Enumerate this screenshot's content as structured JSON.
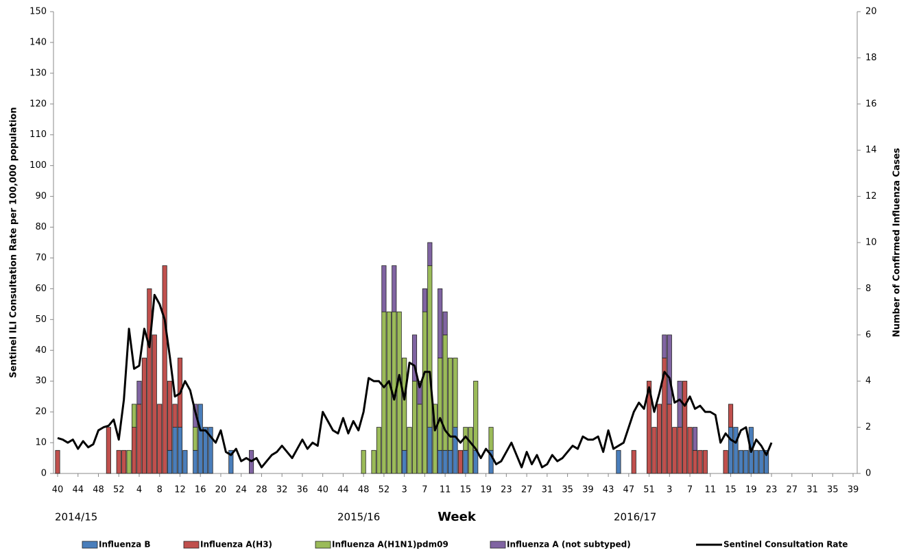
{
  "chart_data": {
    "type": "bar",
    "stacked": true,
    "y_label": "Sentinel ILI Consultation Rate per 100,000 population",
    "y2_label": "Number of Confirmed Influenza Cases",
    "x_label": "Week",
    "season_labels": [
      "2014/15",
      "2015/16",
      "2016/17"
    ],
    "ylim": [
      0,
      150
    ],
    "yticks": [
      0,
      10,
      20,
      30,
      40,
      50,
      60,
      70,
      80,
      90,
      100,
      110,
      120,
      130,
      140,
      150
    ],
    "y2lim": [
      0,
      20
    ],
    "y2ticks": [
      0,
      2,
      4,
      6,
      8,
      10,
      12,
      14,
      16,
      18,
      20
    ],
    "legend": "bottom",
    "categories": [
      "40",
      null,
      null,
      null,
      "44",
      null,
      null,
      null,
      "48",
      null,
      null,
      null,
      "52",
      null,
      null,
      null,
      "4",
      null,
      null,
      null,
      "8",
      null,
      null,
      null,
      "12",
      null,
      null,
      null,
      "16",
      null,
      null,
      null,
      "20",
      null,
      null,
      null,
      "24",
      null,
      null,
      null,
      "28",
      null,
      null,
      null,
      "32",
      null,
      null,
      null,
      "36",
      null,
      null,
      null,
      "40",
      null,
      null,
      null,
      "44",
      null,
      null,
      null,
      "48",
      null,
      null,
      null,
      "52",
      null,
      null,
      null,
      "3",
      null,
      null,
      null,
      "7",
      null,
      null,
      null,
      "11",
      null,
      null,
      null,
      "15",
      null,
      null,
      null,
      "19",
      null,
      null,
      null,
      "23",
      null,
      null,
      null,
      "27",
      null,
      null,
      null,
      "31",
      null,
      null,
      null,
      "35",
      null,
      null,
      null,
      "39",
      null,
      null,
      null,
      "43",
      null,
      null,
      null,
      "47",
      null,
      null,
      null,
      "51",
      null,
      null,
      null,
      "3",
      null,
      null,
      null,
      "7",
      null,
      null,
      null,
      "11",
      null,
      null,
      null,
      "15",
      null,
      null,
      null,
      "19",
      null,
      null,
      null,
      "23",
      null,
      null,
      null,
      "27",
      null,
      null,
      null,
      "31",
      null,
      null,
      null,
      "35",
      null,
      null,
      null,
      "39"
    ],
    "series": [
      {
        "name": "Influenza B",
        "type": "bar",
        "axis": "y2",
        "color": "#4a7ebb",
        "values": [
          0,
          0,
          0,
          0,
          0,
          0,
          0,
          0,
          0,
          0,
          0,
          0,
          0,
          0,
          0,
          0,
          0,
          0,
          0,
          0,
          0,
          0,
          1,
          2,
          2,
          1,
          0,
          1,
          3,
          2,
          2,
          0,
          0,
          0,
          1,
          0,
          0,
          0,
          0,
          0,
          0,
          0,
          0,
          0,
          0,
          0,
          0,
          0,
          0,
          0,
          0,
          0,
          0,
          0,
          0,
          0,
          0,
          0,
          0,
          0,
          0,
          0,
          0,
          0,
          0,
          0,
          0,
          0,
          1,
          0,
          0,
          0,
          0,
          2,
          0,
          1,
          1,
          1,
          2,
          0,
          1,
          0,
          1,
          0,
          0,
          1,
          0,
          0,
          0,
          0,
          0,
          0,
          0,
          0,
          0,
          0,
          0,
          0,
          0,
          0,
          0,
          0,
          0,
          0,
          0,
          0,
          0,
          0,
          0,
          0,
          1,
          0,
          0,
          0,
          0,
          0,
          0,
          0,
          0,
          0,
          0,
          0,
          0,
          0,
          0,
          0,
          0,
          0,
          0,
          0,
          0,
          0,
          2,
          2,
          1,
          1,
          2,
          1,
          1,
          1,
          0,
          0,
          0,
          0,
          0,
          0,
          0,
          0,
          0,
          0,
          0,
          0,
          0,
          0,
          0,
          0,
          0
        ]
      },
      {
        "name": "Influenza A(H3)",
        "type": "bar",
        "axis": "y2",
        "color": "#c0504d",
        "values": [
          1,
          0,
          0,
          0,
          0,
          0,
          0,
          0,
          0,
          0,
          2,
          0,
          1,
          1,
          0,
          2,
          3,
          5,
          8,
          6,
          3,
          9,
          3,
          1,
          3,
          0,
          0,
          0,
          0,
          0,
          0,
          0,
          0,
          0,
          0,
          0,
          0,
          0,
          0,
          0,
          0,
          0,
          0,
          0,
          0,
          0,
          0,
          0,
          0,
          0,
          0,
          0,
          0,
          0,
          0,
          0,
          0,
          0,
          0,
          0,
          0,
          0,
          0,
          0,
          0,
          0,
          0,
          0,
          0,
          0,
          0,
          0,
          0,
          0,
          0,
          0,
          0,
          0,
          0,
          1,
          0,
          0,
          0,
          0,
          0,
          0,
          0,
          0,
          0,
          0,
          0,
          0,
          0,
          0,
          0,
          0,
          0,
          0,
          0,
          0,
          0,
          0,
          0,
          0,
          0,
          0,
          0,
          0,
          0,
          0,
          0,
          0,
          0,
          1,
          0,
          0,
          4,
          2,
          3,
          5,
          3,
          2,
          2,
          4,
          2,
          1,
          1,
          1,
          0,
          0,
          0,
          1,
          1,
          0,
          0,
          0,
          0,
          0,
          0,
          0,
          0,
          0,
          0,
          0,
          0,
          0,
          0,
          0,
          0,
          0,
          0,
          0,
          0,
          0,
          0,
          0,
          0
        ]
      },
      {
        "name": "Influenza A(H1N1)pdm09",
        "type": "bar",
        "axis": "y2",
        "color": "#9bbb59",
        "values": [
          0,
          0,
          0,
          0,
          0,
          0,
          0,
          0,
          0,
          0,
          0,
          0,
          0,
          0,
          1,
          1,
          0,
          0,
          0,
          0,
          0,
          0,
          0,
          0,
          0,
          0,
          0,
          1,
          0,
          0,
          0,
          0,
          0,
          0,
          0,
          0,
          0,
          0,
          0,
          0,
          0,
          0,
          0,
          0,
          0,
          0,
          0,
          0,
          0,
          0,
          0,
          0,
          0,
          0,
          0,
          0,
          0,
          0,
          0,
          0,
          1,
          0,
          1,
          2,
          7,
          7,
          7,
          7,
          4,
          2,
          4,
          3,
          7,
          7,
          3,
          4,
          5,
          4,
          3,
          0,
          1,
          2,
          3,
          0,
          0,
          1,
          0,
          0,
          0,
          0,
          0,
          0,
          0,
          0,
          0,
          0,
          0,
          0,
          0,
          0,
          0,
          0,
          0,
          0,
          0,
          0,
          0,
          0,
          0,
          0,
          0,
          0,
          0,
          0,
          0,
          0,
          0,
          0,
          0,
          0,
          0,
          0,
          0,
          0,
          0,
          0,
          0,
          0,
          0,
          0,
          0,
          0,
          0,
          0,
          0,
          0,
          0,
          0,
          0,
          0,
          0,
          0,
          0,
          0,
          0,
          0,
          0,
          0,
          0,
          0,
          0,
          0,
          0,
          0,
          0,
          0,
          0
        ]
      },
      {
        "name": "Influenza A (not subtyped)",
        "type": "bar",
        "axis": "y2",
        "color": "#8064a2",
        "values": [
          0,
          0,
          0,
          0,
          0,
          0,
          0,
          0,
          0,
          0,
          0,
          0,
          0,
          0,
          0,
          0,
          1,
          0,
          0,
          0,
          0,
          0,
          0,
          0,
          0,
          0,
          0,
          1,
          0,
          0,
          0,
          0,
          0,
          0,
          0,
          0,
          0,
          0,
          1,
          0,
          0,
          0,
          0,
          0,
          0,
          0,
          0,
          0,
          0,
          0,
          0,
          0,
          0,
          0,
          0,
          0,
          0,
          0,
          0,
          0,
          0,
          0,
          0,
          0,
          2,
          0,
          2,
          0,
          0,
          0,
          2,
          1,
          1,
          1,
          0,
          3,
          1,
          0,
          0,
          0,
          0,
          0,
          0,
          0,
          0,
          0,
          0,
          0,
          0,
          0,
          0,
          0,
          0,
          0,
          0,
          0,
          0,
          0,
          0,
          0,
          0,
          0,
          0,
          0,
          0,
          0,
          0,
          0,
          0,
          0,
          0,
          0,
          0,
          0,
          0,
          0,
          0,
          0,
          0,
          1,
          3,
          0,
          2,
          0,
          0,
          1,
          0,
          0,
          0,
          0,
          0,
          0,
          0,
          0,
          0,
          0,
          0,
          0,
          0,
          0,
          0,
          0,
          0,
          0,
          0,
          0,
          0,
          0,
          0,
          0,
          0,
          0,
          0,
          0,
          0,
          0,
          0
        ]
      },
      {
        "name": "Sentinel Consultation Rate",
        "type": "line",
        "axis": "y",
        "color": "#000000",
        "values": [
          11.5,
          11,
          10,
          11,
          8,
          10.5,
          8.5,
          9.5,
          14,
          15,
          15.5,
          17.5,
          11,
          24,
          47,
          34,
          35,
          47,
          41,
          58,
          55,
          50,
          38,
          25,
          26,
          30,
          27,
          20,
          14,
          14,
          12,
          10,
          14,
          7,
          6,
          8,
          4,
          5,
          4,
          5,
          2,
          4,
          6,
          7,
          9,
          7,
          5,
          8,
          11,
          8,
          10,
          9,
          20,
          17,
          14,
          13,
          18,
          13,
          17,
          14,
          20,
          31,
          30,
          30,
          28,
          30,
          24,
          32,
          24,
          36,
          35,
          28,
          33,
          33,
          14,
          18,
          14,
          12,
          12,
          10,
          12,
          10,
          8,
          5,
          8,
          6,
          3,
          4,
          7,
          10,
          6,
          2,
          7,
          3,
          6,
          2,
          3,
          6,
          4,
          5,
          7,
          9,
          8,
          12,
          11,
          11,
          12,
          7,
          14,
          8,
          9,
          10,
          15,
          20,
          23,
          21,
          28,
          20,
          26,
          33,
          31,
          23,
          24,
          22,
          25,
          21,
          22,
          20,
          20,
          19,
          10,
          13,
          11,
          10,
          14,
          15,
          7,
          11,
          9,
          6,
          10,
          null,
          null,
          null,
          null,
          null,
          null,
          null,
          null,
          null,
          null,
          null,
          null,
          null,
          null,
          null,
          null
        ]
      }
    ]
  }
}
